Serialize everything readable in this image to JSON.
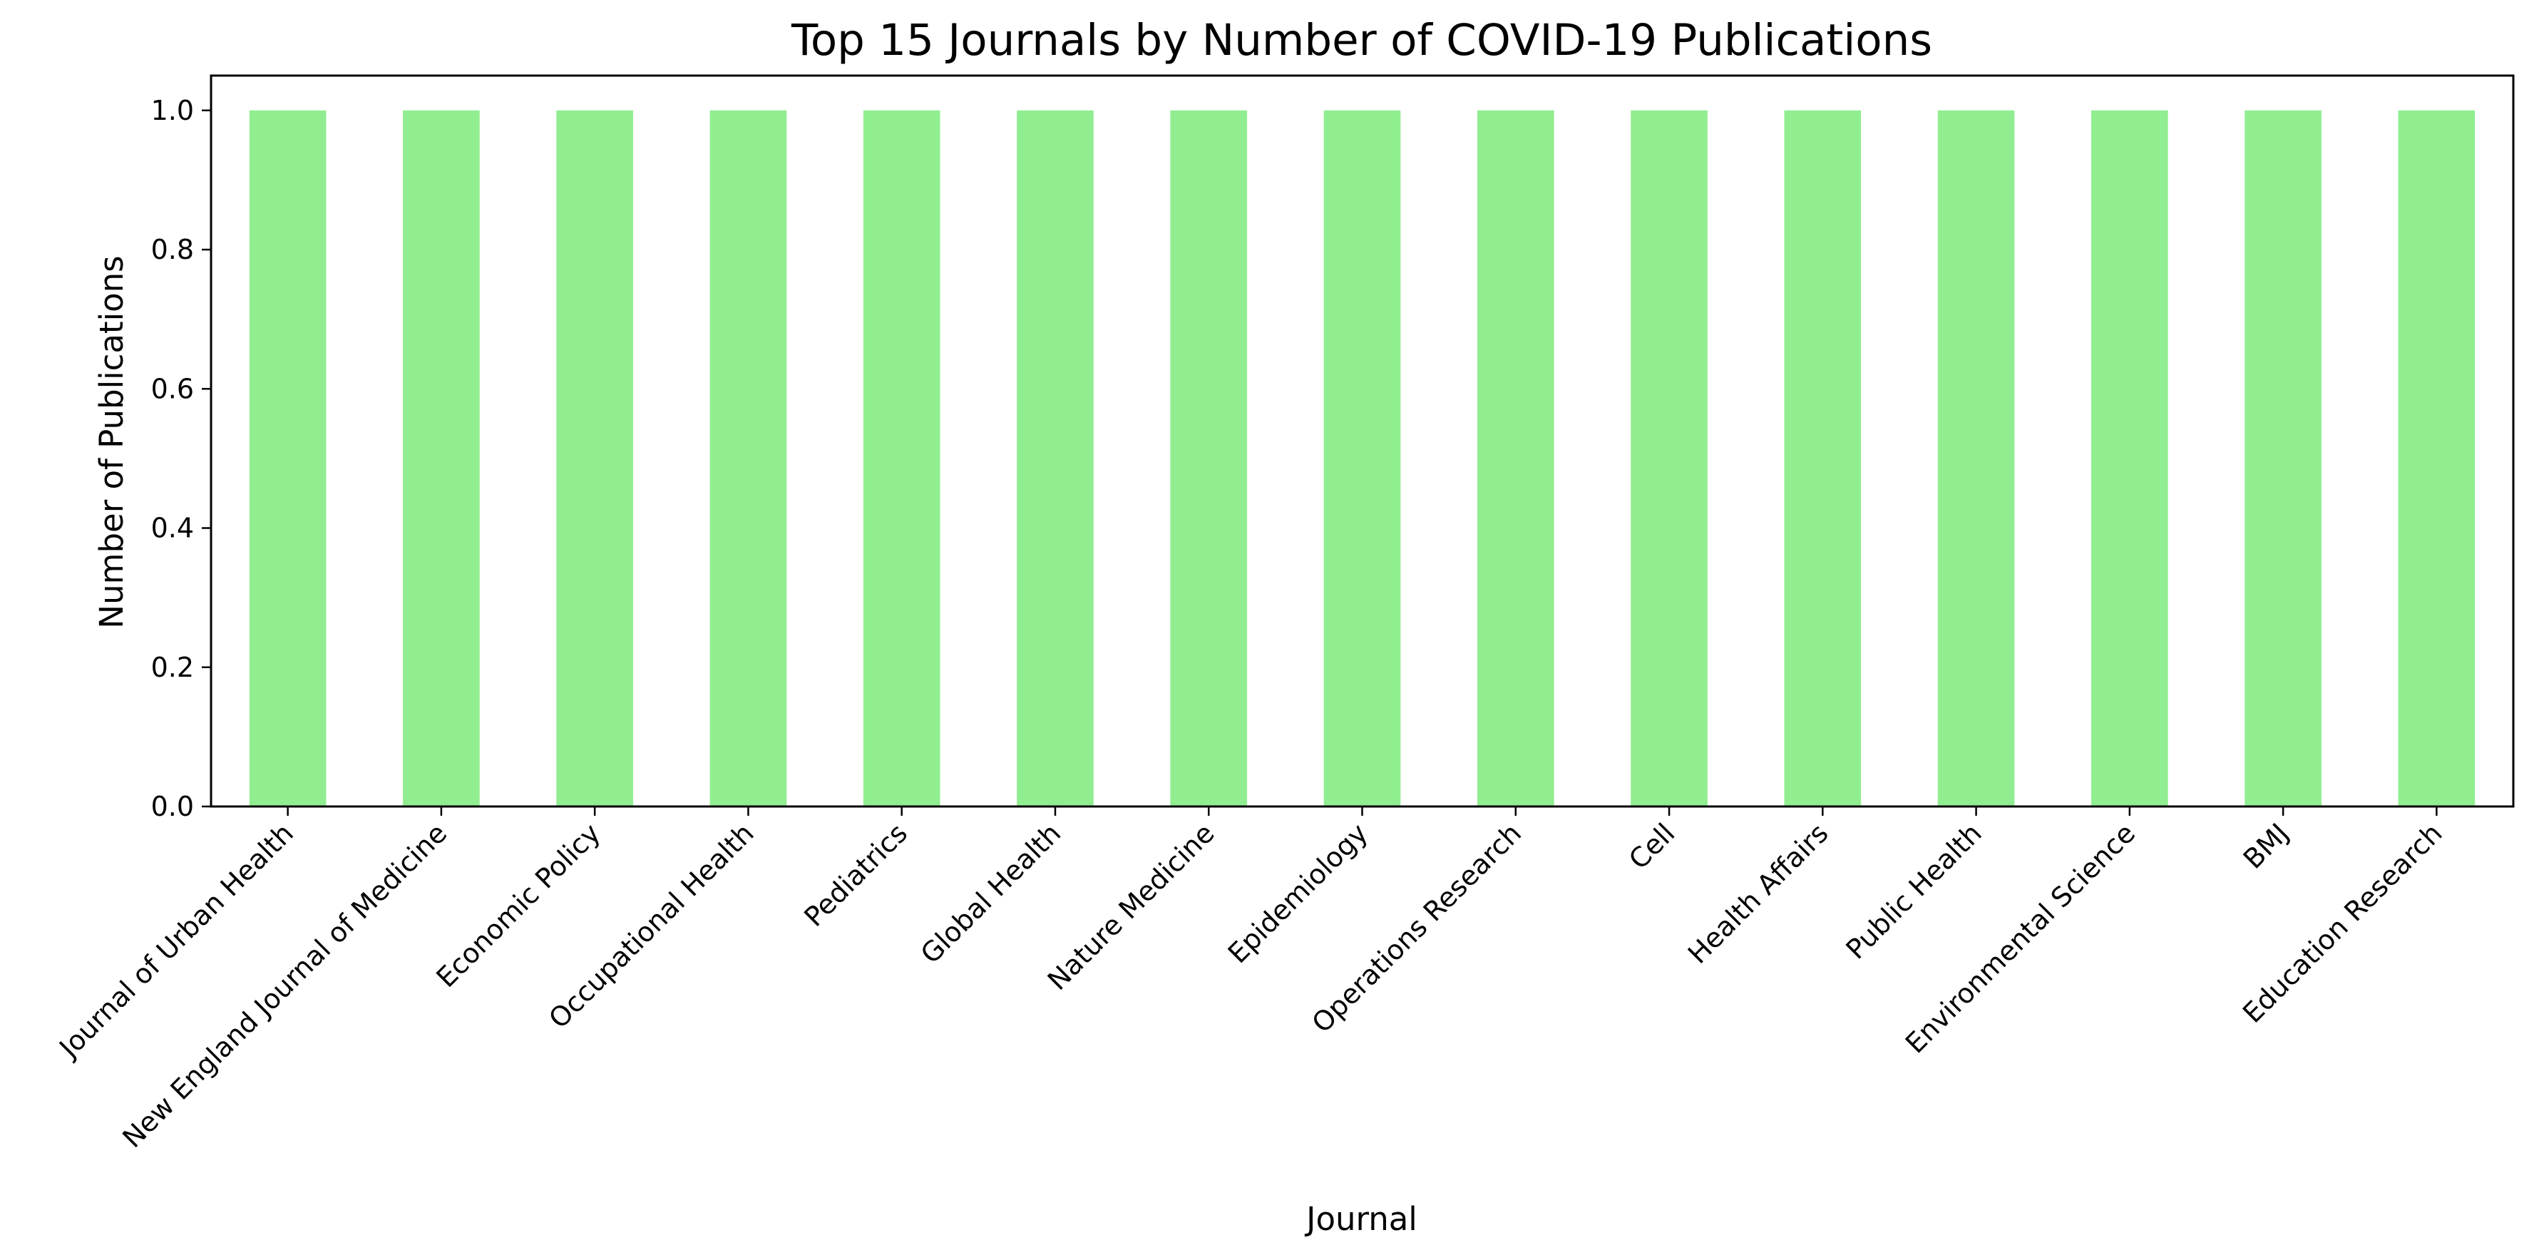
{
  "chart_data": {
    "type": "bar",
    "title": "Top 15 Journals by Number of COVID-19 Publications",
    "xlabel": "Journal",
    "ylabel": "Number of Publications",
    "categories": [
      "Journal of Urban Health",
      "New England Journal of Medicine",
      "Economic Policy",
      "Occupational Health",
      "Pediatrics",
      "Global Health",
      "Nature Medicine",
      "Epidemiology",
      "Operations Research",
      "Cell",
      "Health Affairs",
      "Public Health",
      "Environmental Science",
      "BMJ",
      "Education Research"
    ],
    "values": [
      1,
      1,
      1,
      1,
      1,
      1,
      1,
      1,
      1,
      1,
      1,
      1,
      1,
      1,
      1
    ],
    "yticks": [
      "0.0",
      "0.2",
      "0.4",
      "0.6",
      "0.8",
      "1.0"
    ],
    "ylim": [
      0,
      1.05
    ],
    "grid": false,
    "legend": "none",
    "colors": {
      "bar": "#90EE90",
      "axis": "#000000"
    }
  }
}
